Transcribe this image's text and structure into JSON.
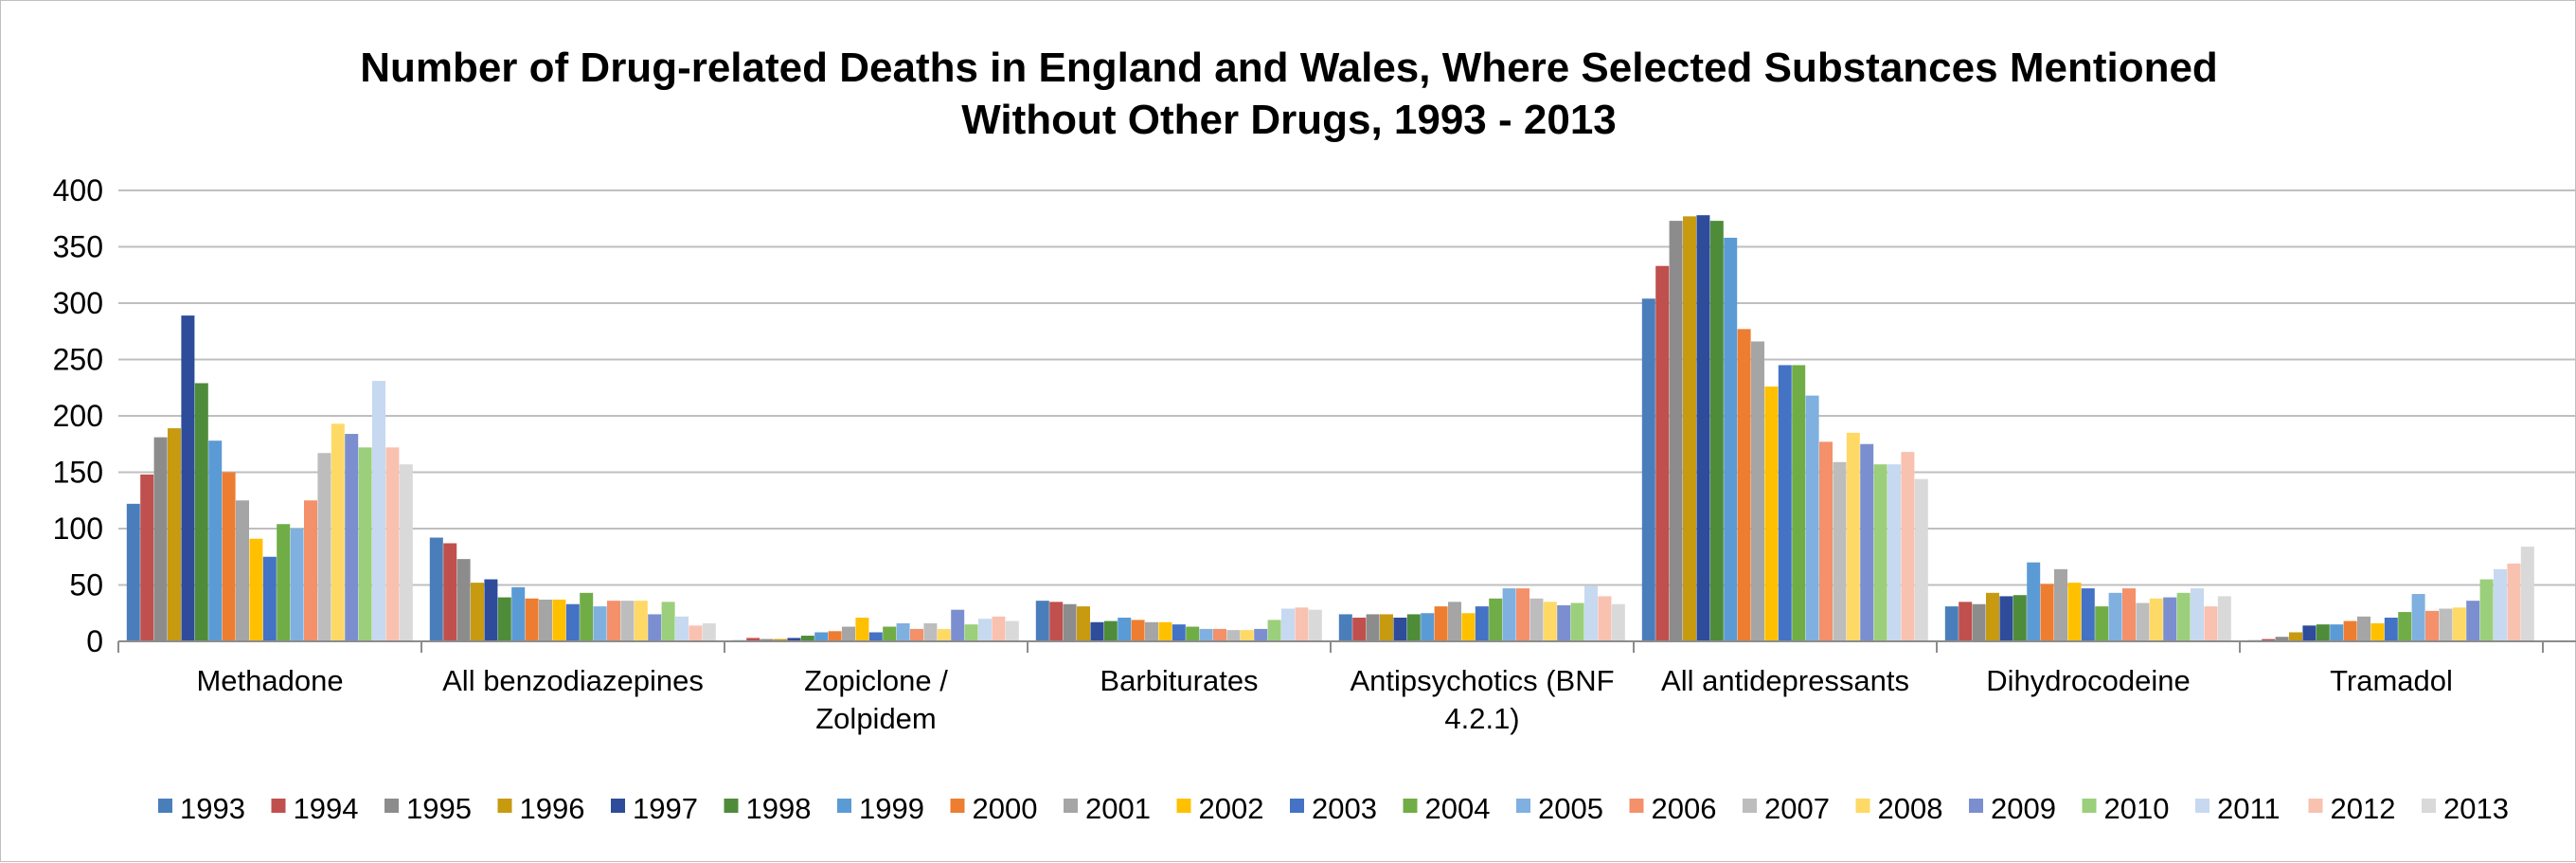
{
  "chart_data": {
    "type": "bar",
    "title_lines": [
      "Number of Drug-related Deaths in England and Wales, Where Selected Substances Mentioned",
      "Without Other Drugs, 1993 - 2013"
    ],
    "xlabel": "",
    "ylabel": "",
    "ylim": [
      0,
      400
    ],
    "yticks": [
      0,
      50,
      100,
      150,
      200,
      250,
      300,
      350,
      400
    ],
    "grid": true,
    "legend_position": "bottom",
    "categories": [
      [
        "Methadone"
      ],
      [
        "All benzodiazepines"
      ],
      [
        "Zopiclone /",
        "Zolpidem"
      ],
      [
        "Barbiturates"
      ],
      [
        "Antipsychotics (BNF",
        "4.2.1)"
      ],
      [
        "All antidepressants"
      ],
      [
        "Dihydrocodeine"
      ],
      [
        "Tramadol"
      ]
    ],
    "series": [
      {
        "name": "1993",
        "color": "#4a7eba",
        "values": [
          122,
          92,
          1,
          36,
          24,
          304,
          31,
          1
        ]
      },
      {
        "name": "1994",
        "color": "#c0504d",
        "values": [
          148,
          87,
          3,
          35,
          21,
          333,
          35,
          2
        ]
      },
      {
        "name": "1995",
        "color": "#8c8c8c",
        "values": [
          181,
          73,
          2,
          33,
          24,
          373,
          33,
          4
        ]
      },
      {
        "name": "1996",
        "color": "#c79a10",
        "values": [
          189,
          52,
          2,
          31,
          24,
          377,
          43,
          8
        ]
      },
      {
        "name": "1997",
        "color": "#2e4c9a",
        "values": [
          289,
          55,
          3,
          17,
          21,
          378,
          40,
          14
        ]
      },
      {
        "name": "1998",
        "color": "#4e8c3a",
        "values": [
          229,
          39,
          5,
          18,
          24,
          373,
          41,
          15
        ]
      },
      {
        "name": "1999",
        "color": "#5b9bd5",
        "values": [
          178,
          48,
          8,
          21,
          25,
          358,
          70,
          15
        ]
      },
      {
        "name": "2000",
        "color": "#ed7d31",
        "values": [
          150,
          38,
          9,
          19,
          31,
          277,
          51,
          18
        ]
      },
      {
        "name": "2001",
        "color": "#a5a5a5",
        "values": [
          125,
          37,
          13,
          17,
          35,
          266,
          64,
          22
        ]
      },
      {
        "name": "2002",
        "color": "#ffc000",
        "values": [
          91,
          37,
          21,
          17,
          25,
          226,
          52,
          16
        ]
      },
      {
        "name": "2003",
        "color": "#4472c4",
        "values": [
          75,
          33,
          8,
          15,
          31,
          245,
          47,
          21
        ]
      },
      {
        "name": "2004",
        "color": "#70ad47",
        "values": [
          104,
          43,
          13,
          13,
          38,
          245,
          31,
          26
        ]
      },
      {
        "name": "2005",
        "color": "#7fb0e0",
        "values": [
          100,
          31,
          16,
          11,
          47,
          218,
          43,
          42
        ]
      },
      {
        "name": "2006",
        "color": "#f4906a",
        "values": [
          125,
          36,
          11,
          11,
          47,
          177,
          47,
          27
        ]
      },
      {
        "name": "2007",
        "color": "#bdbdbd",
        "values": [
          167,
          36,
          16,
          10,
          38,
          159,
          34,
          29
        ]
      },
      {
        "name": "2008",
        "color": "#ffd966",
        "values": [
          193,
          36,
          11,
          10,
          35,
          185,
          38,
          30
        ]
      },
      {
        "name": "2009",
        "color": "#7b8fd0",
        "values": [
          184,
          24,
          28,
          11,
          32,
          175,
          39,
          36
        ]
      },
      {
        "name": "2010",
        "color": "#9bcf7c",
        "values": [
          172,
          35,
          15,
          19,
          34,
          157,
          43,
          55
        ]
      },
      {
        "name": "2011",
        "color": "#c6d9f0",
        "values": [
          231,
          22,
          20,
          29,
          49,
          157,
          47,
          64
        ]
      },
      {
        "name": "2012",
        "color": "#f8c1b0",
        "values": [
          172,
          14,
          22,
          30,
          40,
          168,
          31,
          69
        ]
      },
      {
        "name": "2013",
        "color": "#d9d9d9",
        "values": [
          157,
          16,
          18,
          28,
          33,
          144,
          40,
          84
        ]
      }
    ]
  }
}
